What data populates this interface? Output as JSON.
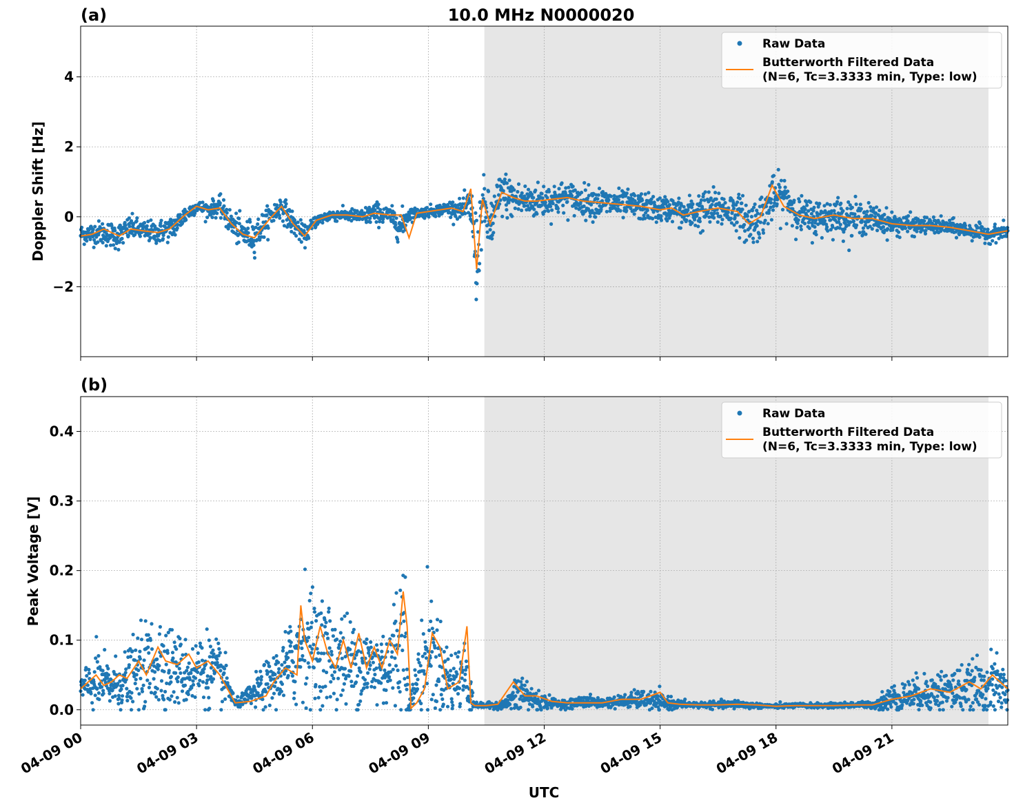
{
  "figure": {
    "title": "10.0 MHz N0000020",
    "xlabel": "UTC",
    "x_tick_labels": [
      "04-09 00",
      "04-09 03",
      "04-09 06",
      "04-09 09",
      "04-09 12",
      "04-09 15",
      "04-09 18",
      "04-09 21"
    ],
    "legend": {
      "raw": "Raw Data",
      "filtered_line1": "Butterworth Filtered Data",
      "filtered_line2": "(N=6, Tc=3.3333 min, Type: low)"
    },
    "colors": {
      "raw": "#1f77b4",
      "filtered": "#ff7f0e",
      "shade": "#e6e6e6",
      "grid": "#b0b0b0"
    }
  },
  "chart_data": [
    {
      "type": "scatter",
      "panel_label": "(a)",
      "title": "10.0 MHz N0000020",
      "ylabel": "Doppler Shift [Hz]",
      "xlabel": "",
      "x_unit": "hours UTC on 04-09",
      "xlim": [
        0,
        24
      ],
      "ylim": [
        -4,
        5.45
      ],
      "y_ticks": [
        -2,
        0,
        2,
        4
      ],
      "y_tick_labels": [
        "−2",
        "0",
        "2",
        "4"
      ],
      "grid": true,
      "legend_position": "top-right",
      "shaded_x_range": [
        10.45,
        23.5
      ],
      "series": [
        {
          "name": "Raw Data",
          "style": "dots",
          "x": [
            0,
            0.5,
            1,
            1.3,
            1.6,
            2,
            2.4,
            2.7,
            3,
            3.3,
            3.6,
            3.9,
            4.2,
            4.5,
            4.9,
            5.2,
            5.5,
            5.8,
            6.1,
            6.5,
            6.9,
            7.3,
            7.6,
            8.0,
            8.3,
            8.5,
            8.7,
            9.0,
            9.3,
            9.6,
            9.9,
            10.1,
            10.25,
            10.4,
            10.6,
            10.9,
            11.2,
            11.5,
            11.8,
            12.2,
            12.6,
            13.0,
            13.5,
            14.0,
            14.5,
            15.0,
            15.3,
            15.6,
            16.0,
            16.5,
            17.0,
            17.3,
            17.6,
            17.9,
            18.2,
            18.6,
            19.0,
            19.5,
            20.0,
            20.5,
            21.0,
            21.5,
            22.0,
            22.5,
            23.0,
            23.5,
            24.0
          ],
          "y": [
            -0.5,
            -0.45,
            -0.55,
            -0.3,
            -0.4,
            -0.45,
            -0.3,
            0.05,
            0.3,
            0.2,
            0.3,
            -0.2,
            -0.5,
            -0.55,
            0.0,
            0.3,
            -0.2,
            -0.55,
            -0.1,
            0.05,
            0.05,
            0.0,
            0.1,
            0.05,
            -0.3,
            0.1,
            0.1,
            0.15,
            0.2,
            0.25,
            0.2,
            0.3,
            -1.3,
            0.4,
            -0.3,
            0.7,
            0.5,
            0.45,
            0.45,
            0.5,
            0.55,
            0.45,
            0.4,
            0.35,
            0.3,
            0.2,
            0.25,
            0.05,
            0.15,
            0.25,
            0.15,
            -0.2,
            0.0,
            0.5,
            0.6,
            0.05,
            -0.05,
            0.05,
            -0.05,
            -0.05,
            -0.2,
            -0.25,
            -0.25,
            -0.3,
            -0.4,
            -0.5,
            -0.4
          ],
          "spread": [
            0.25,
            0.3,
            0.35,
            0.3,
            0.25,
            0.3,
            0.3,
            0.25,
            0.15,
            0.2,
            0.25,
            0.35,
            0.4,
            0.4,
            0.3,
            0.3,
            0.3,
            0.25,
            0.15,
            0.15,
            0.15,
            0.2,
            0.3,
            0.2,
            0.45,
            0.2,
            0.12,
            0.15,
            0.15,
            0.2,
            0.25,
            0.6,
            1.3,
            0.7,
            0.8,
            0.6,
            0.5,
            0.45,
            0.45,
            0.45,
            0.4,
            0.4,
            0.4,
            0.35,
            0.35,
            0.35,
            0.3,
            0.4,
            0.5,
            0.5,
            0.45,
            0.6,
            0.55,
            0.55,
            0.55,
            0.45,
            0.5,
            0.45,
            0.45,
            0.35,
            0.3,
            0.25,
            0.2,
            0.2,
            0.2,
            0.2,
            0.2
          ]
        },
        {
          "name": "Butterworth Filtered Data",
          "style": "line",
          "x": [
            0,
            0.3,
            0.6,
            1.0,
            1.3,
            1.6,
            2.0,
            2.3,
            2.7,
            3.0,
            3.3,
            3.6,
            3.9,
            4.2,
            4.5,
            4.9,
            5.2,
            5.5,
            5.8,
            6.1,
            6.5,
            6.9,
            7.3,
            7.6,
            8.0,
            8.3,
            8.5,
            8.7,
            9.0,
            9.3,
            9.6,
            9.9,
            10.1,
            10.25,
            10.4,
            10.6,
            10.9,
            11.2,
            11.5,
            11.8,
            12.2,
            12.6,
            13.0,
            13.5,
            14.0,
            14.5,
            15.0,
            15.3,
            15.6,
            16.0,
            16.5,
            17.0,
            17.3,
            17.6,
            17.9,
            18.2,
            18.6,
            19.0,
            19.5,
            20.0,
            20.5,
            21.0,
            21.5,
            22.0,
            22.5,
            23.0,
            23.5,
            24.0
          ],
          "y": [
            -0.55,
            -0.5,
            -0.35,
            -0.55,
            -0.35,
            -0.4,
            -0.45,
            -0.35,
            0.05,
            0.3,
            0.2,
            0.25,
            -0.2,
            -0.5,
            -0.6,
            -0.05,
            0.3,
            -0.2,
            -0.55,
            -0.1,
            0.05,
            0.05,
            0.0,
            0.1,
            0.05,
            0.05,
            -0.6,
            0.1,
            0.15,
            0.2,
            0.25,
            0.15,
            0.8,
            -1.5,
            0.5,
            -0.2,
            0.7,
            0.55,
            0.45,
            0.45,
            0.5,
            0.55,
            0.45,
            0.4,
            0.35,
            0.3,
            0.2,
            0.25,
            0.05,
            0.15,
            0.25,
            0.15,
            -0.2,
            0.0,
            0.9,
            0.3,
            0.05,
            -0.05,
            0.05,
            -0.05,
            -0.05,
            -0.2,
            -0.25,
            -0.25,
            -0.3,
            -0.4,
            -0.5,
            -0.4
          ]
        }
      ]
    },
    {
      "type": "scatter",
      "panel_label": "(b)",
      "title": "",
      "ylabel": "Peak Voltage [V]",
      "xlabel": "UTC",
      "x_unit": "hours UTC on 04-09",
      "xlim": [
        0,
        24
      ],
      "ylim": [
        -0.022,
        0.45
      ],
      "y_ticks": [
        0.0,
        0.1,
        0.2,
        0.3,
        0.4
      ],
      "y_tick_labels": [
        "0.0",
        "0.1",
        "0.2",
        "0.3",
        "0.4"
      ],
      "grid": true,
      "legend_position": "top-right",
      "shaded_x_range": [
        10.45,
        23.5
      ],
      "series": [
        {
          "name": "Raw Data",
          "style": "dots",
          "x": [
            0,
            0.4,
            0.8,
            1.2,
            1.6,
            2.0,
            2.4,
            2.8,
            3.2,
            3.6,
            3.85,
            4.0,
            4.4,
            4.8,
            5.2,
            5.6,
            5.8,
            6.0,
            6.4,
            6.8,
            7.2,
            7.6,
            8.0,
            8.4,
            8.5,
            8.7,
            9.0,
            9.3,
            9.6,
            9.9,
            10.05,
            10.2,
            10.6,
            11.0,
            11.4,
            11.8,
            12.2,
            12.6,
            13.0,
            13.5,
            14.0,
            14.5,
            15.0,
            15.5,
            16.0,
            16.5,
            17.0,
            17.5,
            18.0,
            18.5,
            19.0,
            19.5,
            20.0,
            20.5,
            21.0,
            21.5,
            22.0,
            22.5,
            23.0,
            23.5,
            24.0
          ],
          "y": [
            0.03,
            0.04,
            0.035,
            0.04,
            0.06,
            0.07,
            0.06,
            0.05,
            0.06,
            0.05,
            0.03,
            0.008,
            0.02,
            0.035,
            0.05,
            0.08,
            0.11,
            0.09,
            0.08,
            0.07,
            0.065,
            0.06,
            0.065,
            0.12,
            0.003,
            0.04,
            0.09,
            0.06,
            0.04,
            0.05,
            0.04,
            0.006,
            0.006,
            0.008,
            0.025,
            0.012,
            0.01,
            0.008,
            0.012,
            0.01,
            0.012,
            0.015,
            0.01,
            0.008,
            0.007,
            0.007,
            0.008,
            0.006,
            0.005,
            0.006,
            0.006,
            0.006,
            0.007,
            0.007,
            0.015,
            0.022,
            0.025,
            0.028,
            0.03,
            0.035,
            0.03
          ],
          "spread": [
            0.02,
            0.04,
            0.03,
            0.04,
            0.05,
            0.07,
            0.05,
            0.04,
            0.05,
            0.04,
            0.02,
            0.004,
            0.015,
            0.03,
            0.04,
            0.07,
            0.08,
            0.07,
            0.07,
            0.06,
            0.06,
            0.05,
            0.06,
            0.12,
            0.003,
            0.04,
            0.08,
            0.06,
            0.04,
            0.05,
            0.05,
            0.003,
            0.004,
            0.006,
            0.03,
            0.015,
            0.006,
            0.005,
            0.008,
            0.006,
            0.008,
            0.012,
            0.012,
            0.005,
            0.004,
            0.004,
            0.006,
            0.003,
            0.003,
            0.003,
            0.003,
            0.003,
            0.004,
            0.004,
            0.02,
            0.02,
            0.025,
            0.03,
            0.03,
            0.04,
            0.03
          ]
        },
        {
          "name": "Butterworth Filtered Data",
          "style": "line",
          "x": [
            0,
            0.2,
            0.4,
            0.6,
            0.8,
            1.0,
            1.2,
            1.5,
            1.7,
            2.0,
            2.2,
            2.5,
            2.8,
            3.0,
            3.3,
            3.6,
            3.85,
            4.0,
            4.4,
            4.8,
            5.0,
            5.3,
            5.6,
            5.7,
            5.8,
            6.0,
            6.2,
            6.4,
            6.6,
            6.8,
            7.0,
            7.2,
            7.4,
            7.6,
            7.8,
            8.0,
            8.2,
            8.35,
            8.45,
            8.55,
            8.7,
            8.9,
            9.1,
            9.3,
            9.5,
            9.8,
            10.0,
            10.1,
            10.2,
            10.5,
            10.8,
            11.2,
            11.5,
            11.8,
            12.2,
            12.6,
            13.0,
            13.5,
            14.0,
            14.5,
            15.0,
            15.2,
            15.5,
            16.0,
            16.5,
            17.0,
            17.5,
            18.0,
            18.5,
            19.0,
            19.5,
            20.0,
            20.5,
            21.0,
            21.5,
            22.0,
            22.5,
            23.0,
            23.3,
            23.6,
            24.0
          ],
          "y": [
            0.03,
            0.04,
            0.05,
            0.035,
            0.04,
            0.05,
            0.045,
            0.07,
            0.05,
            0.09,
            0.07,
            0.065,
            0.08,
            0.06,
            0.07,
            0.05,
            0.025,
            0.01,
            0.012,
            0.02,
            0.04,
            0.06,
            0.05,
            0.15,
            0.1,
            0.07,
            0.12,
            0.08,
            0.06,
            0.1,
            0.06,
            0.11,
            0.06,
            0.09,
            0.06,
            0.1,
            0.08,
            0.17,
            0.12,
            0.002,
            0.01,
            0.03,
            0.11,
            0.09,
            0.03,
            0.04,
            0.12,
            0.01,
            0.006,
            0.006,
            0.008,
            0.04,
            0.02,
            0.02,
            0.012,
            0.01,
            0.01,
            0.01,
            0.015,
            0.015,
            0.025,
            0.01,
            0.008,
            0.007,
            0.007,
            0.008,
            0.007,
            0.005,
            0.006,
            0.006,
            0.006,
            0.007,
            0.007,
            0.015,
            0.02,
            0.03,
            0.025,
            0.04,
            0.03,
            0.05,
            0.03
          ]
        }
      ]
    }
  ]
}
